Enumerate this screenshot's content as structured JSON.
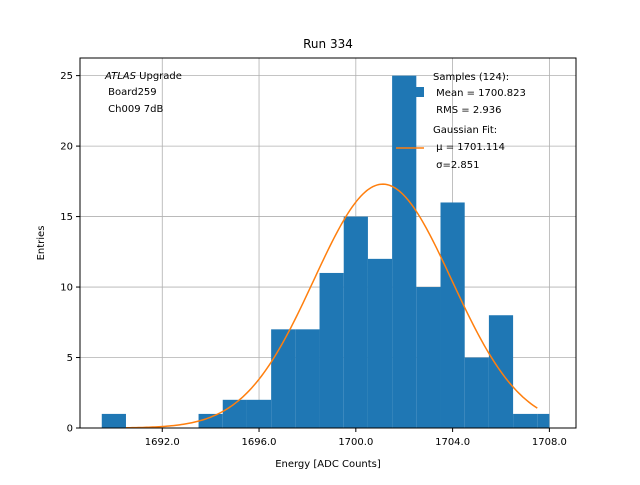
{
  "chart_data": {
    "type": "bar",
    "title": "Run 334",
    "xlabel": "Energy [ADC Counts]",
    "ylabel": "Entries",
    "xlim": [
      1688.6,
      1709.1
    ],
    "ylim": [
      0,
      26.25
    ],
    "grid": true,
    "xticks": [
      1692.0,
      1696.0,
      1700.0,
      1704.0,
      1708.0
    ],
    "xtick_labels": [
      "1692.0",
      "1696.0",
      "1700.0",
      "1704.0",
      "1708.0"
    ],
    "yticks": [
      0,
      5,
      10,
      15,
      20,
      25
    ],
    "ytick_labels": [
      "0",
      "5",
      "10",
      "15",
      "20",
      "25"
    ],
    "bins": [
      {
        "x0": 1689.5,
        "x1": 1690.5,
        "count": 1
      },
      {
        "x0": 1690.5,
        "x1": 1691.5,
        "count": 0
      },
      {
        "x0": 1691.5,
        "x1": 1692.5,
        "count": 0
      },
      {
        "x0": 1692.5,
        "x1": 1693.5,
        "count": 0
      },
      {
        "x0": 1693.5,
        "x1": 1694.5,
        "count": 1
      },
      {
        "x0": 1694.5,
        "x1": 1695.5,
        "count": 2
      },
      {
        "x0": 1695.5,
        "x1": 1696.5,
        "count": 2
      },
      {
        "x0": 1696.5,
        "x1": 1697.5,
        "count": 7
      },
      {
        "x0": 1697.5,
        "x1": 1698.5,
        "count": 7
      },
      {
        "x0": 1698.5,
        "x1": 1699.5,
        "count": 11
      },
      {
        "x0": 1699.5,
        "x1": 1700.5,
        "count": 15
      },
      {
        "x0": 1700.5,
        "x1": 1701.5,
        "count": 12
      },
      {
        "x0": 1701.5,
        "x1": 1702.5,
        "count": 25
      },
      {
        "x0": 1702.5,
        "x1": 1703.5,
        "count": 10
      },
      {
        "x0": 1703.5,
        "x1": 1704.5,
        "count": 16
      },
      {
        "x0": 1704.5,
        "x1": 1705.5,
        "count": 5
      },
      {
        "x0": 1705.5,
        "x1": 1706.5,
        "count": 8
      },
      {
        "x0": 1706.5,
        "x1": 1707.5,
        "count": 1
      },
      {
        "x0": 1707.5,
        "x1": 1708.0,
        "count": 1
      }
    ],
    "fit": {
      "mu": 1701.114,
      "sigma": 2.851,
      "amplitude": 17.3,
      "x_start": 1690.5,
      "x_end": 1707.5
    },
    "annotation_lines": [
      "ATLAS Upgrade",
      " Board259",
      " Ch009 7dB"
    ],
    "legend": {
      "placement": "top-right",
      "samples_lines": [
        "Samples (124):",
        " Mean = 1700.823",
        " RMS = 2.936"
      ],
      "fit_lines": [
        "Gaussian Fit:",
        " μ = 1701.114",
        " σ=2.851"
      ]
    },
    "colors": {
      "bars": "#1f77b4",
      "fit": "#ff7f0e",
      "grid": "#b0b0b0"
    }
  }
}
